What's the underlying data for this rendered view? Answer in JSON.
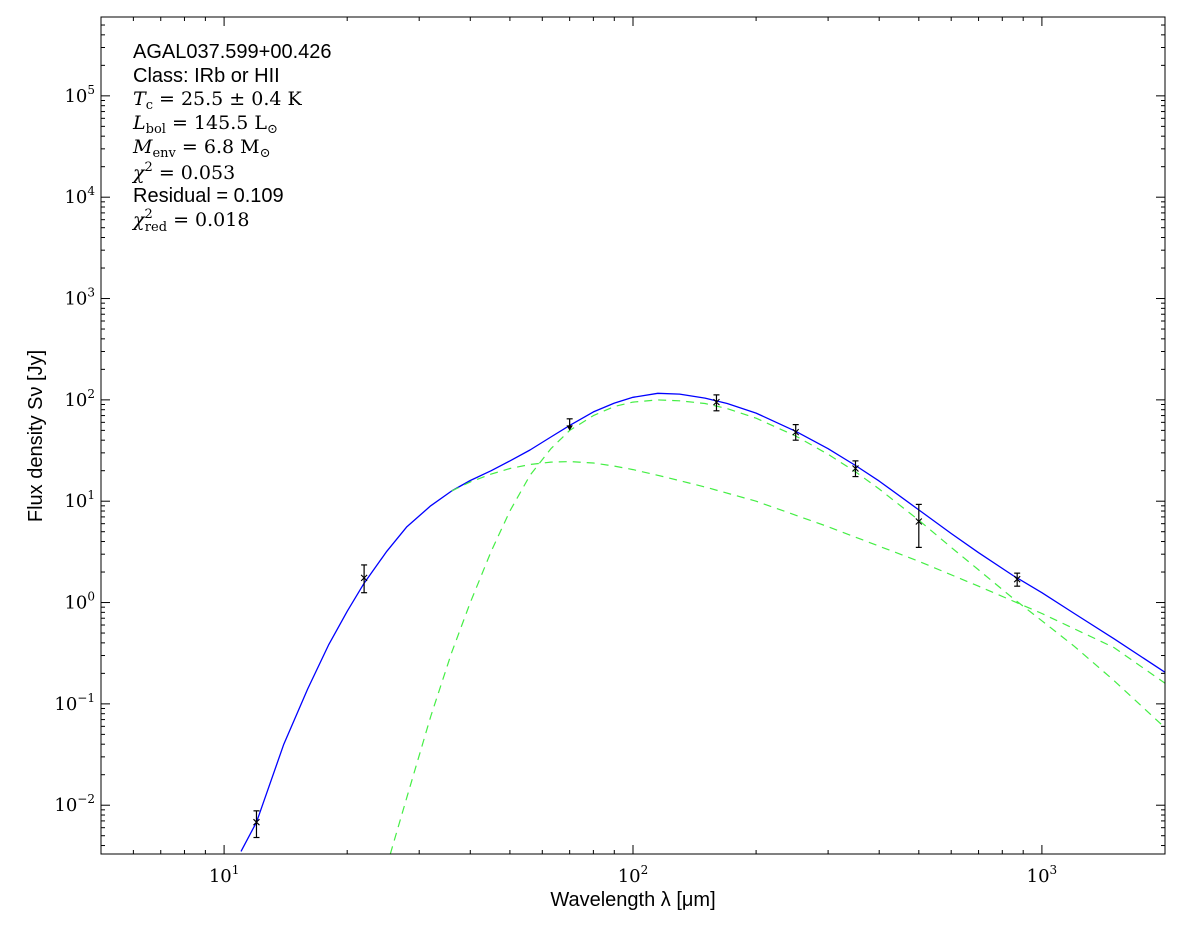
{
  "chart_data": {
    "type": "line",
    "xscale": "log",
    "yscale": "log",
    "xlim": [
      5.0,
      2000.0
    ],
    "ylim": [
      0.0033,
      600000.0
    ],
    "xlabel": "Wavelength λ [μm]",
    "ylabel": "Flux density Sν [Jy]",
    "x_tick_labels": [
      {
        "value": 10,
        "base": "10",
        "exp": "1"
      },
      {
        "value": 100,
        "base": "10",
        "exp": "2"
      },
      {
        "value": 1000,
        "base": "10",
        "exp": "3"
      }
    ],
    "y_tick_labels": [
      {
        "value": 0.01,
        "base": "10",
        "exp": "−2"
      },
      {
        "value": 0.1,
        "base": "10",
        "exp": "−1"
      },
      {
        "value": 1,
        "base": "10",
        "exp": "0"
      },
      {
        "value": 10,
        "base": "10",
        "exp": "1"
      },
      {
        "value": 100,
        "base": "10",
        "exp": "2"
      },
      {
        "value": 1000,
        "base": "10",
        "exp": "3"
      },
      {
        "value": 10000,
        "base": "10",
        "exp": "4"
      },
      {
        "value": 100000,
        "base": "10",
        "exp": "5"
      }
    ],
    "annotations": {
      "source": "AGAL037.599+00.426",
      "class": "Class: IRb or HII",
      "tc": {
        "sym": "T",
        "sub": "c",
        "rest": " = 25.5 ± 0.4 K"
      },
      "lbol": {
        "sym": "L",
        "sub": "bol",
        "rest": " = 145.5 L",
        "rest_sub": "⊙"
      },
      "menv": {
        "sym": "M",
        "sub": "env",
        "rest": " = 6.8 M",
        "rest_sub": "⊙"
      },
      "chi2": {
        "sym": "χ",
        "sup": "2",
        "rest": " = 0.053"
      },
      "residual": "Residual = 0.109",
      "chi2red": {
        "sym": "χ",
        "sup": "2",
        "sub": "red",
        "rest": " = 0.018"
      }
    },
    "colors": {
      "total": "#0000ff",
      "component": "#44ee44",
      "points": "#000000"
    },
    "series": [
      {
        "kind": "total",
        "x": [
          11.0,
          12.0,
          14.0,
          16.0,
          18.0,
          20.0,
          22.0,
          25.0,
          28.0,
          32.0,
          36.0,
          40.0,
          45.0,
          50.0,
          56.0,
          63.0,
          70.0,
          80.0,
          90.0,
          100.0,
          115.0,
          130.0,
          150.0,
          170.0,
          200.0,
          250.0,
          300.0,
          350.0,
          400.0,
          500.0,
          600.0,
          700.0,
          850.0,
          1000.0,
          1200.0,
          1500.0,
          2000.0
        ],
        "y": [
          0.0035,
          0.0068,
          0.04,
          0.14,
          0.38,
          0.82,
          1.55,
          3.2,
          5.6,
          9.0,
          12.6,
          16.0,
          20.0,
          25.0,
          32.0,
          43.0,
          56.0,
          76.0,
          93.0,
          106.0,
          116.0,
          114.0,
          104.0,
          92.0,
          74.0,
          49.0,
          33.0,
          22.5,
          15.8,
          8.2,
          4.8,
          3.1,
          1.85,
          1.25,
          0.78,
          0.44,
          0.205
        ]
      },
      {
        "kind": "component",
        "x": [
          36.0,
          40.0,
          45.0,
          50.0,
          56.0,
          63.0,
          70.0,
          80.0,
          90.0,
          100.0,
          120.0,
          150.0,
          200.0,
          300.0,
          400.0,
          500.0,
          700.0,
          1000.0,
          1500.0,
          2000.0
        ],
        "y": [
          12.6,
          15.5,
          18.5,
          21.0,
          23.0,
          24.3,
          24.6,
          23.8,
          22.2,
          20.5,
          17.3,
          13.8,
          10.0,
          5.6,
          3.6,
          2.55,
          1.45,
          0.78,
          0.36,
          0.16
        ]
      },
      {
        "kind": "component",
        "x": [
          25.5,
          28.0,
          32.0,
          36.0,
          40.0,
          45.0,
          50.0,
          56.0,
          63.0,
          70.0,
          80.0,
          90.0,
          100.0,
          115.0,
          130.0,
          150.0,
          170.0,
          200.0,
          250.0,
          300.0,
          350.0,
          400.0,
          500.0,
          600.0,
          700.0,
          850.0,
          1000.0,
          1200.0,
          1500.0,
          2000.0
        ],
        "y": [
          0.0033,
          0.012,
          0.075,
          0.32,
          1.0,
          3.2,
          8.0,
          18.0,
          33.0,
          50.0,
          70.0,
          86.0,
          95.0,
          100.0,
          98.0,
          92.0,
          82.0,
          66.0,
          44.0,
          29.0,
          19.5,
          13.2,
          6.5,
          3.5,
          2.1,
          1.1,
          0.66,
          0.37,
          0.17,
          0.058
        ]
      }
    ],
    "points": [
      {
        "x": 12.0,
        "y": 0.0068,
        "lo": 0.0048,
        "hi": 0.0088
      },
      {
        "x": 22.0,
        "y": 1.75,
        "lo": 1.25,
        "hi": 2.35
      },
      {
        "x": 160.0,
        "y": 95.0,
        "lo": 78.0,
        "hi": 112.0
      },
      {
        "x": 250.0,
        "y": 48.0,
        "lo": 40.0,
        "hi": 57.0
      },
      {
        "x": 350.0,
        "y": 21.0,
        "lo": 17.5,
        "hi": 25.0
      },
      {
        "x": 500.0,
        "y": 6.3,
        "lo": 3.5,
        "hi": 9.3
      },
      {
        "x": 870.0,
        "y": 1.7,
        "lo": 1.45,
        "hi": 1.95
      }
    ],
    "upper_limits": [
      {
        "x": 70.0,
        "y": 65.0
      }
    ]
  }
}
